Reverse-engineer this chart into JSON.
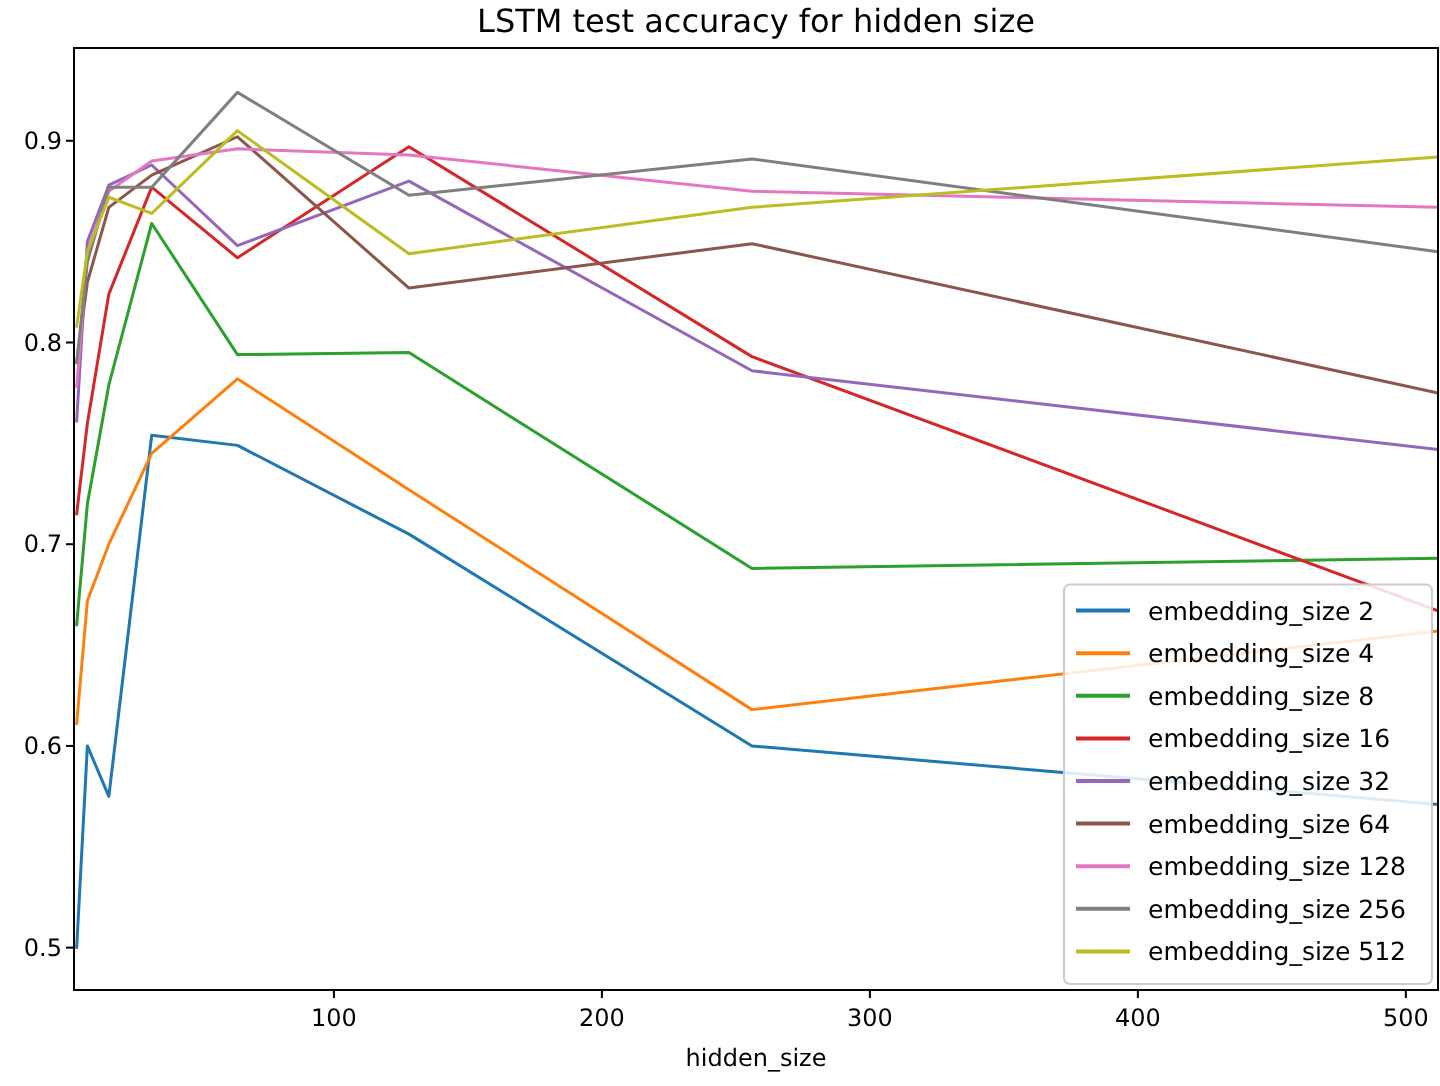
{
  "chart_data": {
    "type": "line",
    "title": "LSTM test accuracy for hidden size",
    "xlabel": "hidden_size",
    "x": [
      4,
      8,
      16,
      32,
      64,
      128,
      256,
      512
    ],
    "xlim": [
      3,
      512
    ],
    "xticks": [
      100,
      200,
      300,
      400,
      500
    ],
    "ylim": [
      0.479,
      0.946
    ],
    "yticks": [
      0.5,
      0.6,
      0.7,
      0.8,
      0.9
    ],
    "grid": false,
    "legend": "bottom right",
    "marker": "none",
    "line_style": "solid",
    "series": [
      {
        "name": "embedding_size 2",
        "color": "#1f77b4",
        "values": [
          0.5,
          0.6,
          0.575,
          0.754,
          0.749,
          0.705,
          0.6,
          0.571
        ]
      },
      {
        "name": "embedding_size 4",
        "color": "#ff7f0e",
        "values": [
          0.611,
          0.672,
          0.7,
          0.745,
          0.782,
          0.727,
          0.618,
          0.657
        ]
      },
      {
        "name": "embedding_size 8",
        "color": "#2ca02c",
        "values": [
          0.66,
          0.72,
          0.779,
          0.859,
          0.794,
          0.795,
          0.688,
          0.693
        ]
      },
      {
        "name": "embedding_size 16",
        "color": "#d62728",
        "values": [
          0.715,
          0.76,
          0.824,
          0.877,
          0.842,
          0.897,
          0.793,
          0.667
        ]
      },
      {
        "name": "embedding_size 32",
        "color": "#9467bd",
        "values": [
          0.761,
          0.85,
          0.878,
          0.888,
          0.848,
          0.88,
          0.786,
          0.747
        ]
      },
      {
        "name": "embedding_size 64",
        "color": "#8c564b",
        "values": [
          0.79,
          0.83,
          0.867,
          0.883,
          0.902,
          0.827,
          0.849,
          0.775
        ]
      },
      {
        "name": "embedding_size 128",
        "color": "#e377c2",
        "values": [
          0.778,
          0.845,
          0.875,
          0.89,
          0.896,
          0.893,
          0.875,
          0.867
        ]
      },
      {
        "name": "embedding_size 256",
        "color": "#7f7f7f",
        "values": [
          0.79,
          0.84,
          0.877,
          0.877,
          0.924,
          0.873,
          0.891,
          0.845
        ]
      },
      {
        "name": "embedding_size 512",
        "color": "#bcbd22",
        "values": [
          0.808,
          0.845,
          0.872,
          0.864,
          0.905,
          0.844,
          0.867,
          0.892
        ]
      }
    ]
  }
}
